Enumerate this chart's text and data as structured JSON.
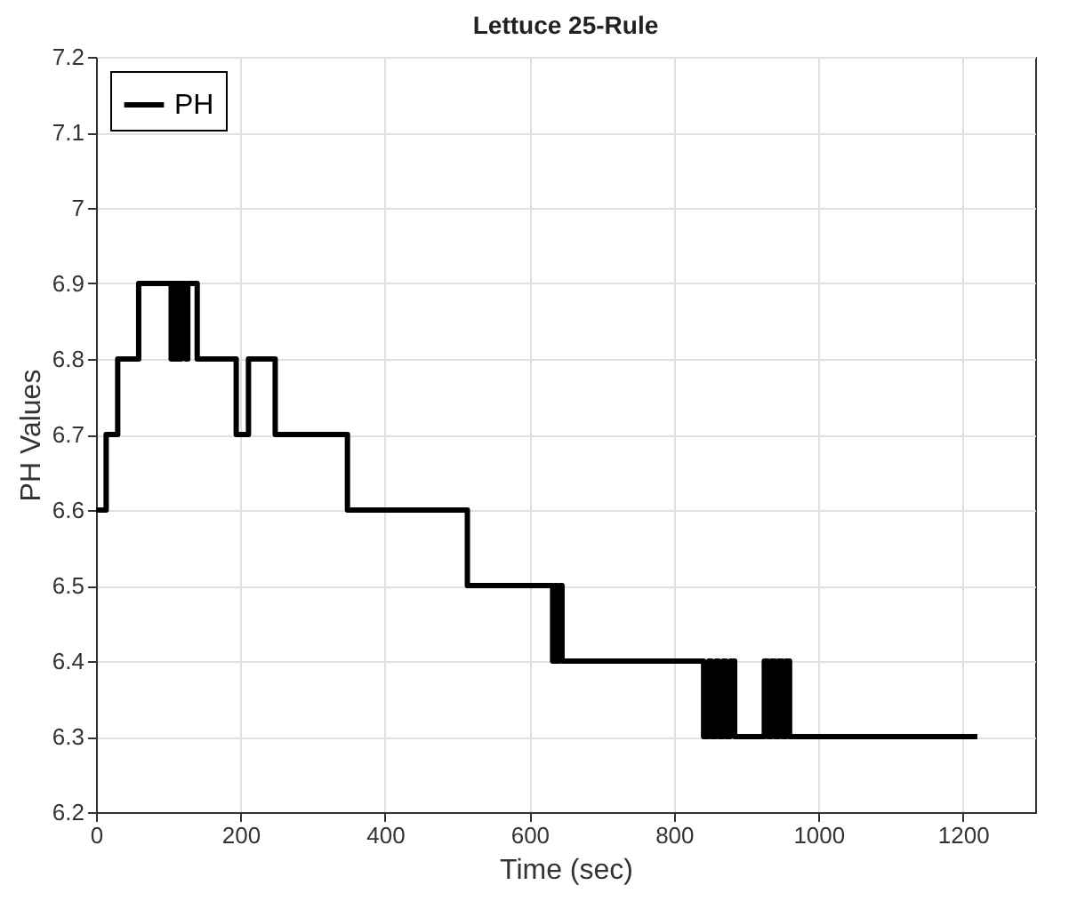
{
  "chart_data": {
    "type": "step",
    "title": "Lettuce 25-Rule",
    "xlabel": "Time (sec)",
    "ylabel": "PH Values",
    "x": [
      0,
      14,
      30,
      59,
      104,
      106,
      108,
      110,
      112,
      114,
      116,
      118,
      124,
      127,
      140,
      194,
      211,
      248,
      348,
      514,
      632,
      635,
      638,
      641,
      645,
      841,
      848,
      852,
      858,
      862,
      868,
      872,
      878,
      884,
      890,
      925,
      930,
      935,
      940,
      945,
      950,
      955,
      960,
      966,
      1220
    ],
    "series": [
      {
        "name": "PH",
        "color": "#000000",
        "values": [
          6.6,
          6.7,
          6.8,
          6.9,
          6.8,
          6.9,
          6.8,
          6.9,
          6.8,
          6.9,
          6.8,
          6.9,
          6.8,
          6.9,
          6.8,
          6.7,
          6.8,
          6.7,
          6.6,
          6.5,
          6.4,
          6.5,
          6.4,
          6.5,
          6.4,
          6.3,
          6.4,
          6.3,
          6.4,
          6.3,
          6.4,
          6.3,
          6.4,
          6.3,
          6.3,
          6.4,
          6.3,
          6.4,
          6.3,
          6.4,
          6.3,
          6.4,
          6.3,
          6.3,
          6.3
        ]
      }
    ],
    "xlim": [
      0,
      1300
    ],
    "xticks": [
      0,
      200,
      400,
      600,
      800,
      1000,
      1200
    ],
    "ylim": [
      6.2,
      7.2
    ],
    "yticks": [
      6.2,
      6.3,
      6.4,
      6.5,
      6.6,
      6.7,
      6.8,
      6.9,
      7,
      7.1,
      7.2
    ],
    "grid": true,
    "legend": "top left",
    "line_style": "solid",
    "marker": "none"
  }
}
